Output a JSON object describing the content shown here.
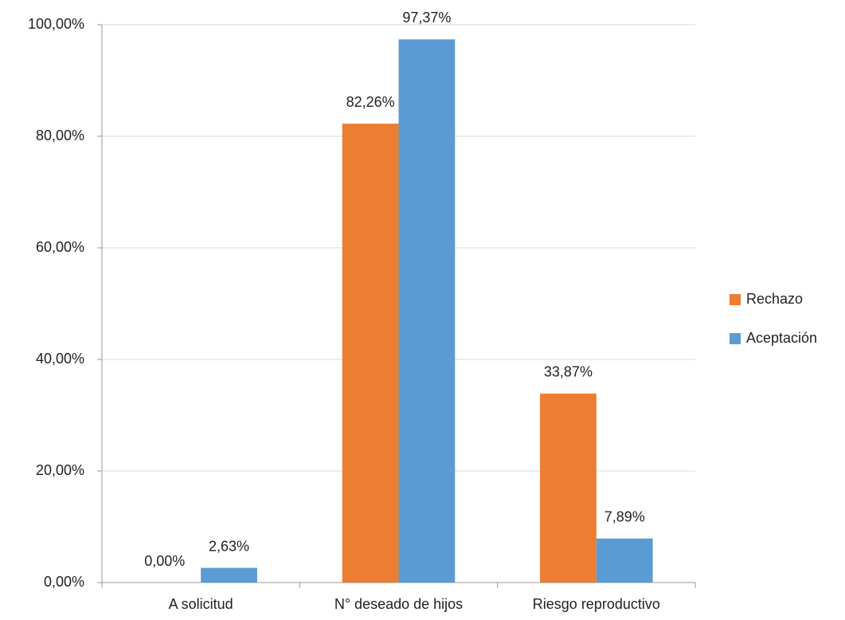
{
  "chart_data": {
    "type": "bar",
    "categories": [
      "A solicitud",
      "N° deseado de hijos",
      "Riesgo reproductivo"
    ],
    "series": [
      {
        "name": "Rechazo",
        "color": "#ed7d31",
        "values": [
          0,
          82.26,
          33.87
        ],
        "value_labels": [
          "0,00%",
          "82,26%",
          "33,87%"
        ]
      },
      {
        "name": "Aceptación",
        "color": "#5b9bd5",
        "values": [
          2.63,
          97.37,
          7.89
        ],
        "value_labels": [
          "2,63%",
          "97,37%",
          "7,89%"
        ]
      }
    ],
    "ylim": [
      0,
      100
    ],
    "yticks": [
      {
        "value": 0,
        "label": "0,00%"
      },
      {
        "value": 20,
        "label": "20,00%"
      },
      {
        "value": 40,
        "label": "40,00%"
      },
      {
        "value": 60,
        "label": "60,00%"
      },
      {
        "value": 80,
        "label": "80,00%"
      },
      {
        "value": 100,
        "label": "100,00%"
      }
    ],
    "grid": true,
    "legend": "right"
  }
}
